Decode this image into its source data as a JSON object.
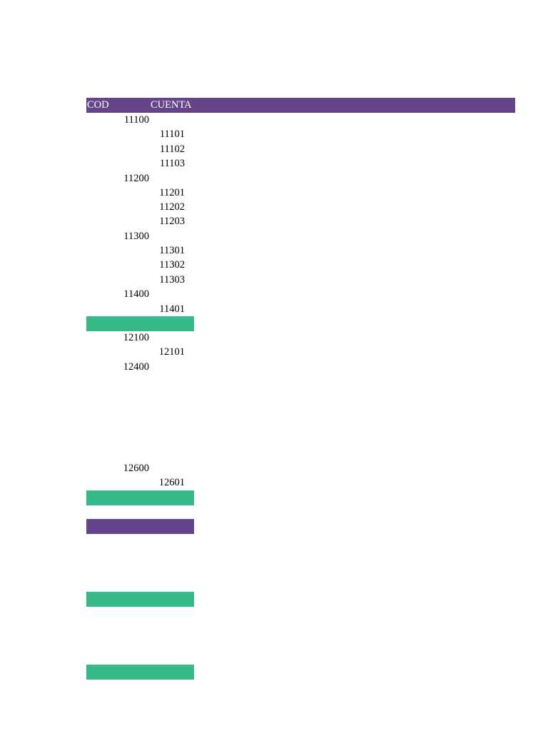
{
  "header": {
    "cod_label": "COD",
    "cuenta_label": "CUENTA",
    "color": "#66448a"
  },
  "rows": [
    {
      "level": 1,
      "code": "11100"
    },
    {
      "level": 2,
      "code": "11101"
    },
    {
      "level": 2,
      "code": "11102"
    },
    {
      "level": 2,
      "code": "11103"
    },
    {
      "level": 1,
      "code": "11200"
    },
    {
      "level": 2,
      "code": "11201"
    },
    {
      "level": 2,
      "code": "11202"
    },
    {
      "level": 2,
      "code": "11203"
    },
    {
      "level": 1,
      "code": "11300"
    },
    {
      "level": 2,
      "code": "11301"
    },
    {
      "level": 2,
      "code": "11302"
    },
    {
      "level": 2,
      "code": "11303"
    },
    {
      "level": 1,
      "code": "11400"
    },
    {
      "level": 2,
      "code": "11401"
    },
    {
      "level": 1,
      "code": "12100"
    },
    {
      "level": 2,
      "code": "12101"
    },
    {
      "level": 1,
      "code": "12400"
    },
    {
      "level": 1,
      "code": "12600"
    },
    {
      "level": 2,
      "code": "12601"
    }
  ],
  "bands": [
    {
      "color": "#36bb88"
    },
    {
      "color": "#36bb88"
    },
    {
      "color": "#66448a"
    },
    {
      "color": "#36bb88"
    },
    {
      "color": "#36bb88"
    }
  ]
}
